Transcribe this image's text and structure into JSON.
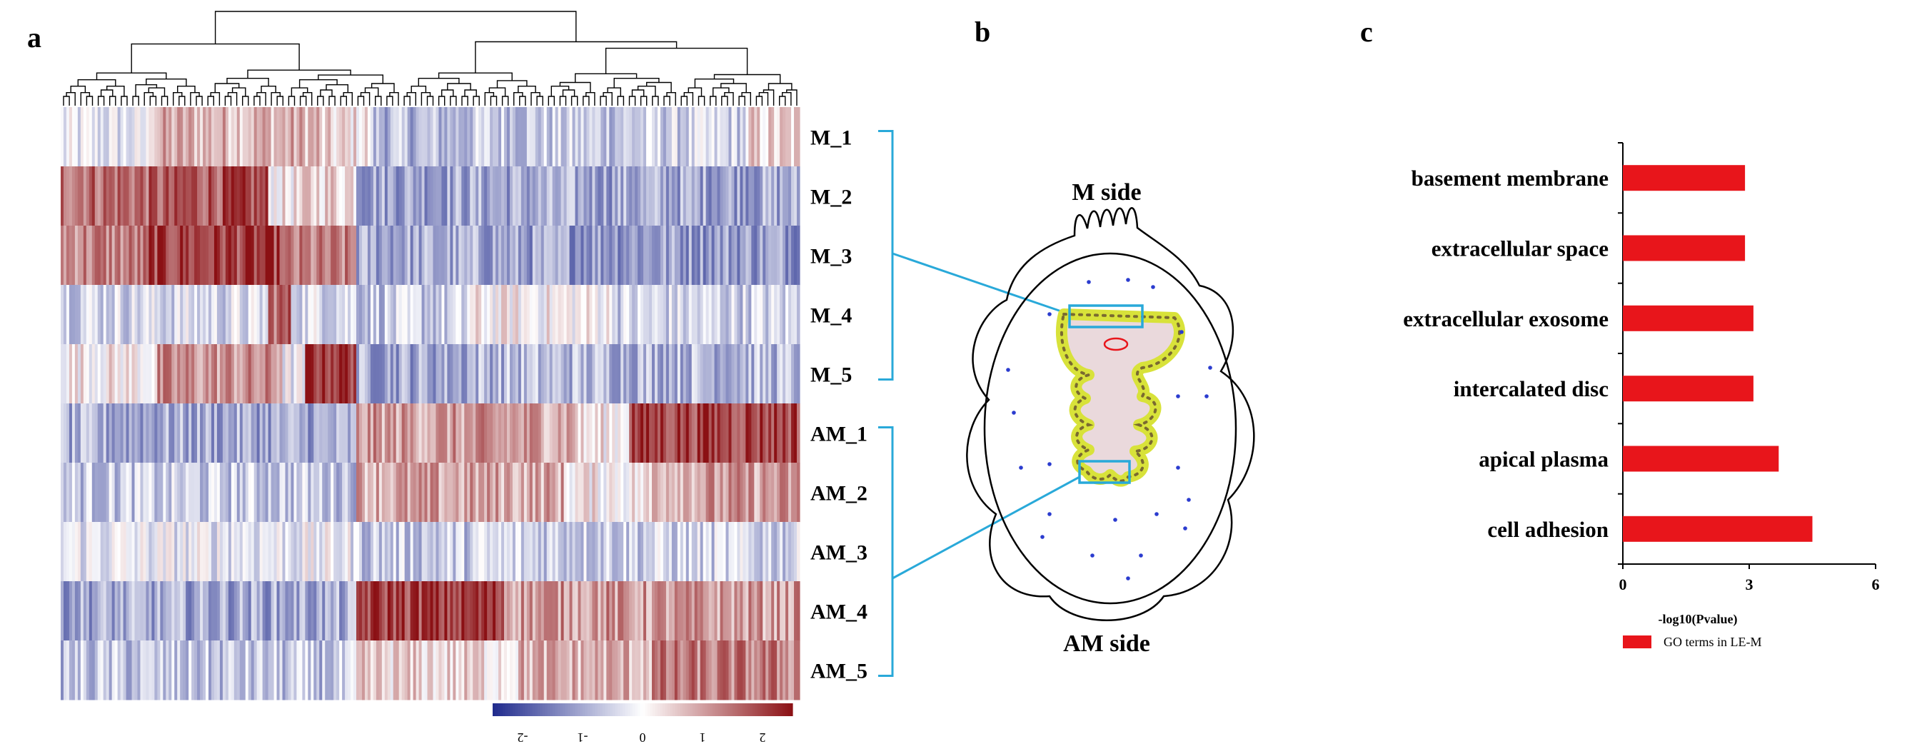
{
  "panels": {
    "a": {
      "label": "a"
    },
    "b": {
      "label": "b"
    },
    "c": {
      "label": "c"
    }
  },
  "colors": {
    "low": "#1f2a8c",
    "mid": "#ffffff",
    "high": "#8b1014",
    "bracket": "#29a9d9",
    "bar": "#e8151b",
    "outline": "#000000",
    "tissue_fill": "#ead9dc",
    "tissue_dots": "#d8e23a",
    "tissue_core": "#7a6a30",
    "embryo": "#e8151b",
    "scatter_dots": "#2b3ccf"
  },
  "heatmap": {
    "rows": [
      "M_1",
      "M_2",
      "M_3",
      "M_4",
      "M_5",
      "AM_1",
      "AM_2",
      "AM_3",
      "AM_4",
      "AM_5"
    ],
    "colorbar_ticks": [
      "-2",
      "-1",
      "0",
      "1",
      "2"
    ],
    "colorbar_range": [
      -2.5,
      2.5
    ],
    "groups": [
      "M",
      "AM"
    ],
    "dendrogram": "hierarchical clustering of genes (columns)"
  },
  "schematic": {
    "top_label": "M side",
    "bottom_label": "AM side"
  },
  "chart_data": {
    "type": "bar",
    "orientation": "horizontal",
    "title": "",
    "categories": [
      "basement membrane",
      "extracellular space",
      "extracellular exosome",
      "intercalated disc",
      "apical plasma",
      "cell adhesion"
    ],
    "series": [
      {
        "name": "GO terms in LE-M",
        "values": [
          2.9,
          2.9,
          3.1,
          3.1,
          3.7,
          4.5
        ]
      }
    ],
    "xlabel": "-log10(Pvalue)",
    "ylabel": "",
    "xlim": [
      0,
      6
    ],
    "xticks": [
      "0",
      "3",
      "6"
    ],
    "legend": {
      "label": "GO terms in LE-M",
      "position": "bottom-left"
    },
    "grid": false
  }
}
